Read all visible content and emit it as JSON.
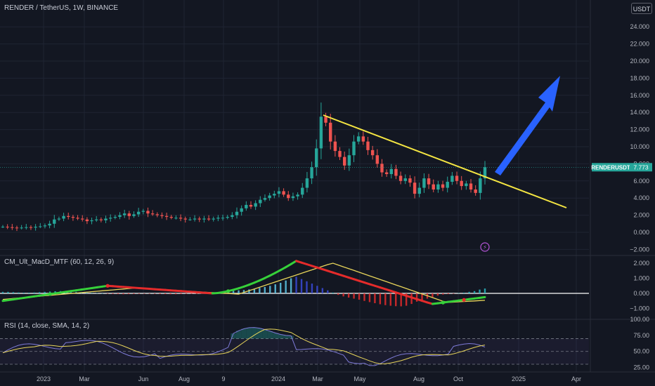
{
  "header": {
    "symbol_title": "RENDER / TetherUS, 1W, BINANCE",
    "currency_button": "USDT"
  },
  "indicators": {
    "macd_label": "CM_Ult_MacD_MTF (60, 12, 26, 9)",
    "rsi_label": "RSI (14, close, SMA, 14, 2)"
  },
  "colors": {
    "background": "#131722",
    "up": "#26a69a",
    "down": "#ef5350",
    "trendline": "#f5e642",
    "arrow": "#2962ff",
    "macd_up": "#36d13a",
    "macd_down": "#e52b2b",
    "signal": "#e8d55a",
    "rsi": "#7e7bd8",
    "rsi_ma": "#e8d55a"
  },
  "chart_data": [
    {
      "type": "candlestick",
      "panel": "price",
      "y_ticks": [
        "24.000",
        "22.000",
        "20.000",
        "18.000",
        "16.000",
        "14.000",
        "12.000",
        "10.000",
        "8.000",
        "6.000",
        "4.000",
        "2.000",
        "0.000",
        "−2.000"
      ],
      "ylim": [
        -2,
        25
      ],
      "x_ticks": [
        "2023",
        "Mar",
        "Jun",
        "Aug",
        "9",
        "2024",
        "Mar",
        "May",
        "Aug",
        "Oct",
        "2025",
        "Apr"
      ],
      "price_label": {
        "symbol": "RENDERUSDT",
        "value": "7.773"
      },
      "weekly_close": [
        0.65,
        0.6,
        0.55,
        0.5,
        0.55,
        0.6,
        0.55,
        0.65,
        0.7,
        0.8,
        1.0,
        1.5,
        1.6,
        1.9,
        1.8,
        1.7,
        1.6,
        1.5,
        1.3,
        1.4,
        1.5,
        1.4,
        1.6,
        1.7,
        1.8,
        2.0,
        2.2,
        1.9,
        2.1,
        2.4,
        2.5,
        2.2,
        2.1,
        2.0,
        1.9,
        1.8,
        1.7,
        1.7,
        1.6,
        1.5,
        1.5,
        1.6,
        1.5,
        1.6,
        1.5,
        1.6,
        1.7,
        1.7,
        1.8,
        2.0,
        2.4,
        2.8,
        3.2,
        3.0,
        3.4,
        3.8,
        4.0,
        4.3,
        4.5,
        4.8,
        4.4,
        4.0,
        4.2,
        4.4,
        5.2,
        6.3,
        7.6,
        9.8,
        13.5,
        12.8,
        10.6,
        9.5,
        8.8,
        7.8,
        9.0,
        10.6,
        11.2,
        10.6,
        9.6,
        9.0,
        8.0,
        7.0,
        6.8,
        7.4,
        6.6,
        6.0,
        6.3,
        5.8,
        4.5,
        5.2,
        6.3,
        5.6,
        5.0,
        5.6,
        5.2,
        5.9,
        6.6,
        6.0,
        5.4,
        5.7,
        5.0,
        4.6,
        6.3,
        7.6
      ]
    },
    {
      "type": "line",
      "panel": "macd",
      "name": "CM_Ult_MacD_MTF",
      "y_ticks": [
        "2.000",
        "1.000",
        "0.000",
        "−1.000"
      ],
      "ylim": [
        -1.3,
        2.6
      ]
    },
    {
      "type": "line",
      "panel": "rsi",
      "name": "RSI",
      "y_ticks": [
        "100.00",
        "75.00",
        "50.00",
        "25.00"
      ],
      "ylim": [
        18,
        100
      ]
    }
  ]
}
